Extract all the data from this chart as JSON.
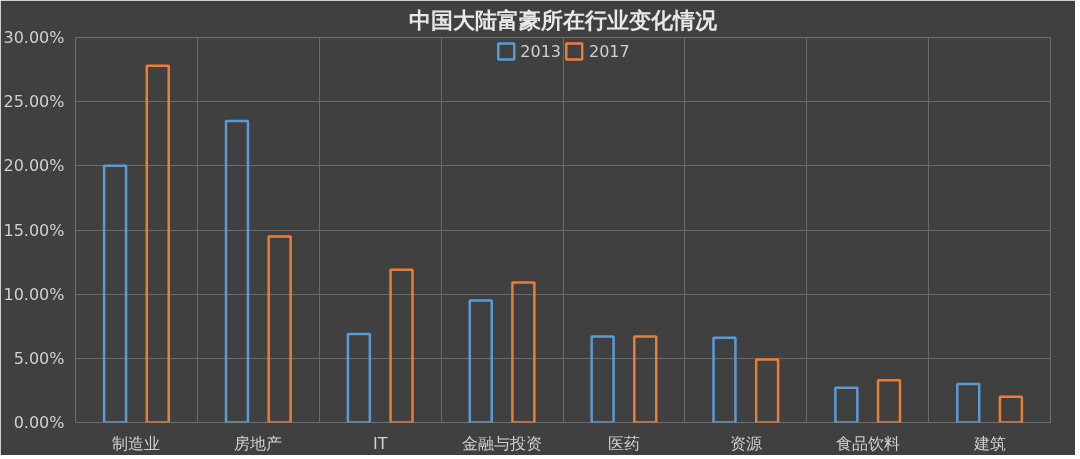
{
  "chart_data": {
    "type": "bar",
    "title": "中国大陆富豪所在行业变化情况",
    "categories": [
      "制造业",
      "房地产",
      "IT",
      "金融与投资",
      "医药",
      "资源",
      "食品饮料",
      "建筑"
    ],
    "series": [
      {
        "name": "2013",
        "color": "#5b9bd5",
        "values": [
          20.0,
          23.5,
          6.9,
          9.5,
          6.7,
          6.6,
          2.7,
          3.0
        ]
      },
      {
        "name": "2017",
        "color": "#ed7d31",
        "values": [
          27.8,
          14.5,
          11.9,
          10.9,
          6.7,
          4.9,
          3.3,
          2.0
        ]
      }
    ],
    "ylim": [
      0,
      30
    ],
    "yticks": [
      {
        "value": 0,
        "label": "0.00%"
      },
      {
        "value": 5,
        "label": "5.00%"
      },
      {
        "value": 10,
        "label": "10.00%"
      },
      {
        "value": 15,
        "label": "15.00%"
      },
      {
        "value": 20,
        "label": "20.00%"
      },
      {
        "value": 25,
        "label": "25.00%"
      },
      {
        "value": 30,
        "label": "30.00%"
      }
    ],
    "grid": true,
    "legend": "top"
  }
}
